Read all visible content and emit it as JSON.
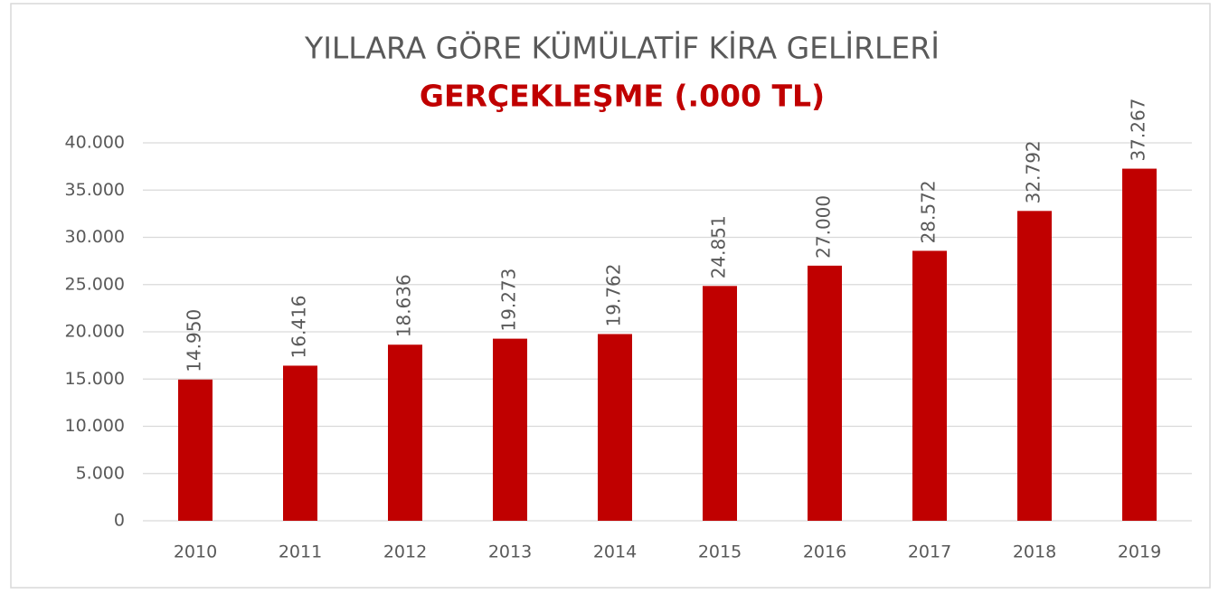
{
  "chart_data": {
    "type": "bar",
    "title": "YILLARA GÖRE KÜMÜLATİF KİRA GELİRLERİ",
    "subtitle": "GERÇEKLEŞME (.000 TL)",
    "categories": [
      "2010",
      "2011",
      "2012",
      "2013",
      "2014",
      "2015",
      "2016",
      "2017",
      "2018",
      "2019"
    ],
    "values": [
      14950,
      16416,
      18636,
      19273,
      19762,
      24851,
      27000,
      28572,
      32792,
      37267
    ],
    "value_labels": [
      "14.950",
      "16.416",
      "18.636",
      "19.273",
      "19.762",
      "24.851",
      "27.000",
      "28.572",
      "32.792",
      "37.267"
    ],
    "color": "#c00000",
    "ylim": [
      0,
      40000
    ],
    "yticks": [
      0,
      {
        "value": 5000,
        "label": "5.000"
      },
      {
        "value": 10000,
        "label": "10.000"
      },
      {
        "value": 15000,
        "label": "15.000"
      },
      {
        "value": 20000,
        "label": "20.000"
      },
      {
        "value": 25000,
        "label": "25.000"
      },
      {
        "value": 30000,
        "label": "30.000"
      },
      {
        "value": 35000,
        "label": "35.000"
      },
      {
        "value": 40000,
        "label": "40.000"
      }
    ],
    "grid": true
  }
}
